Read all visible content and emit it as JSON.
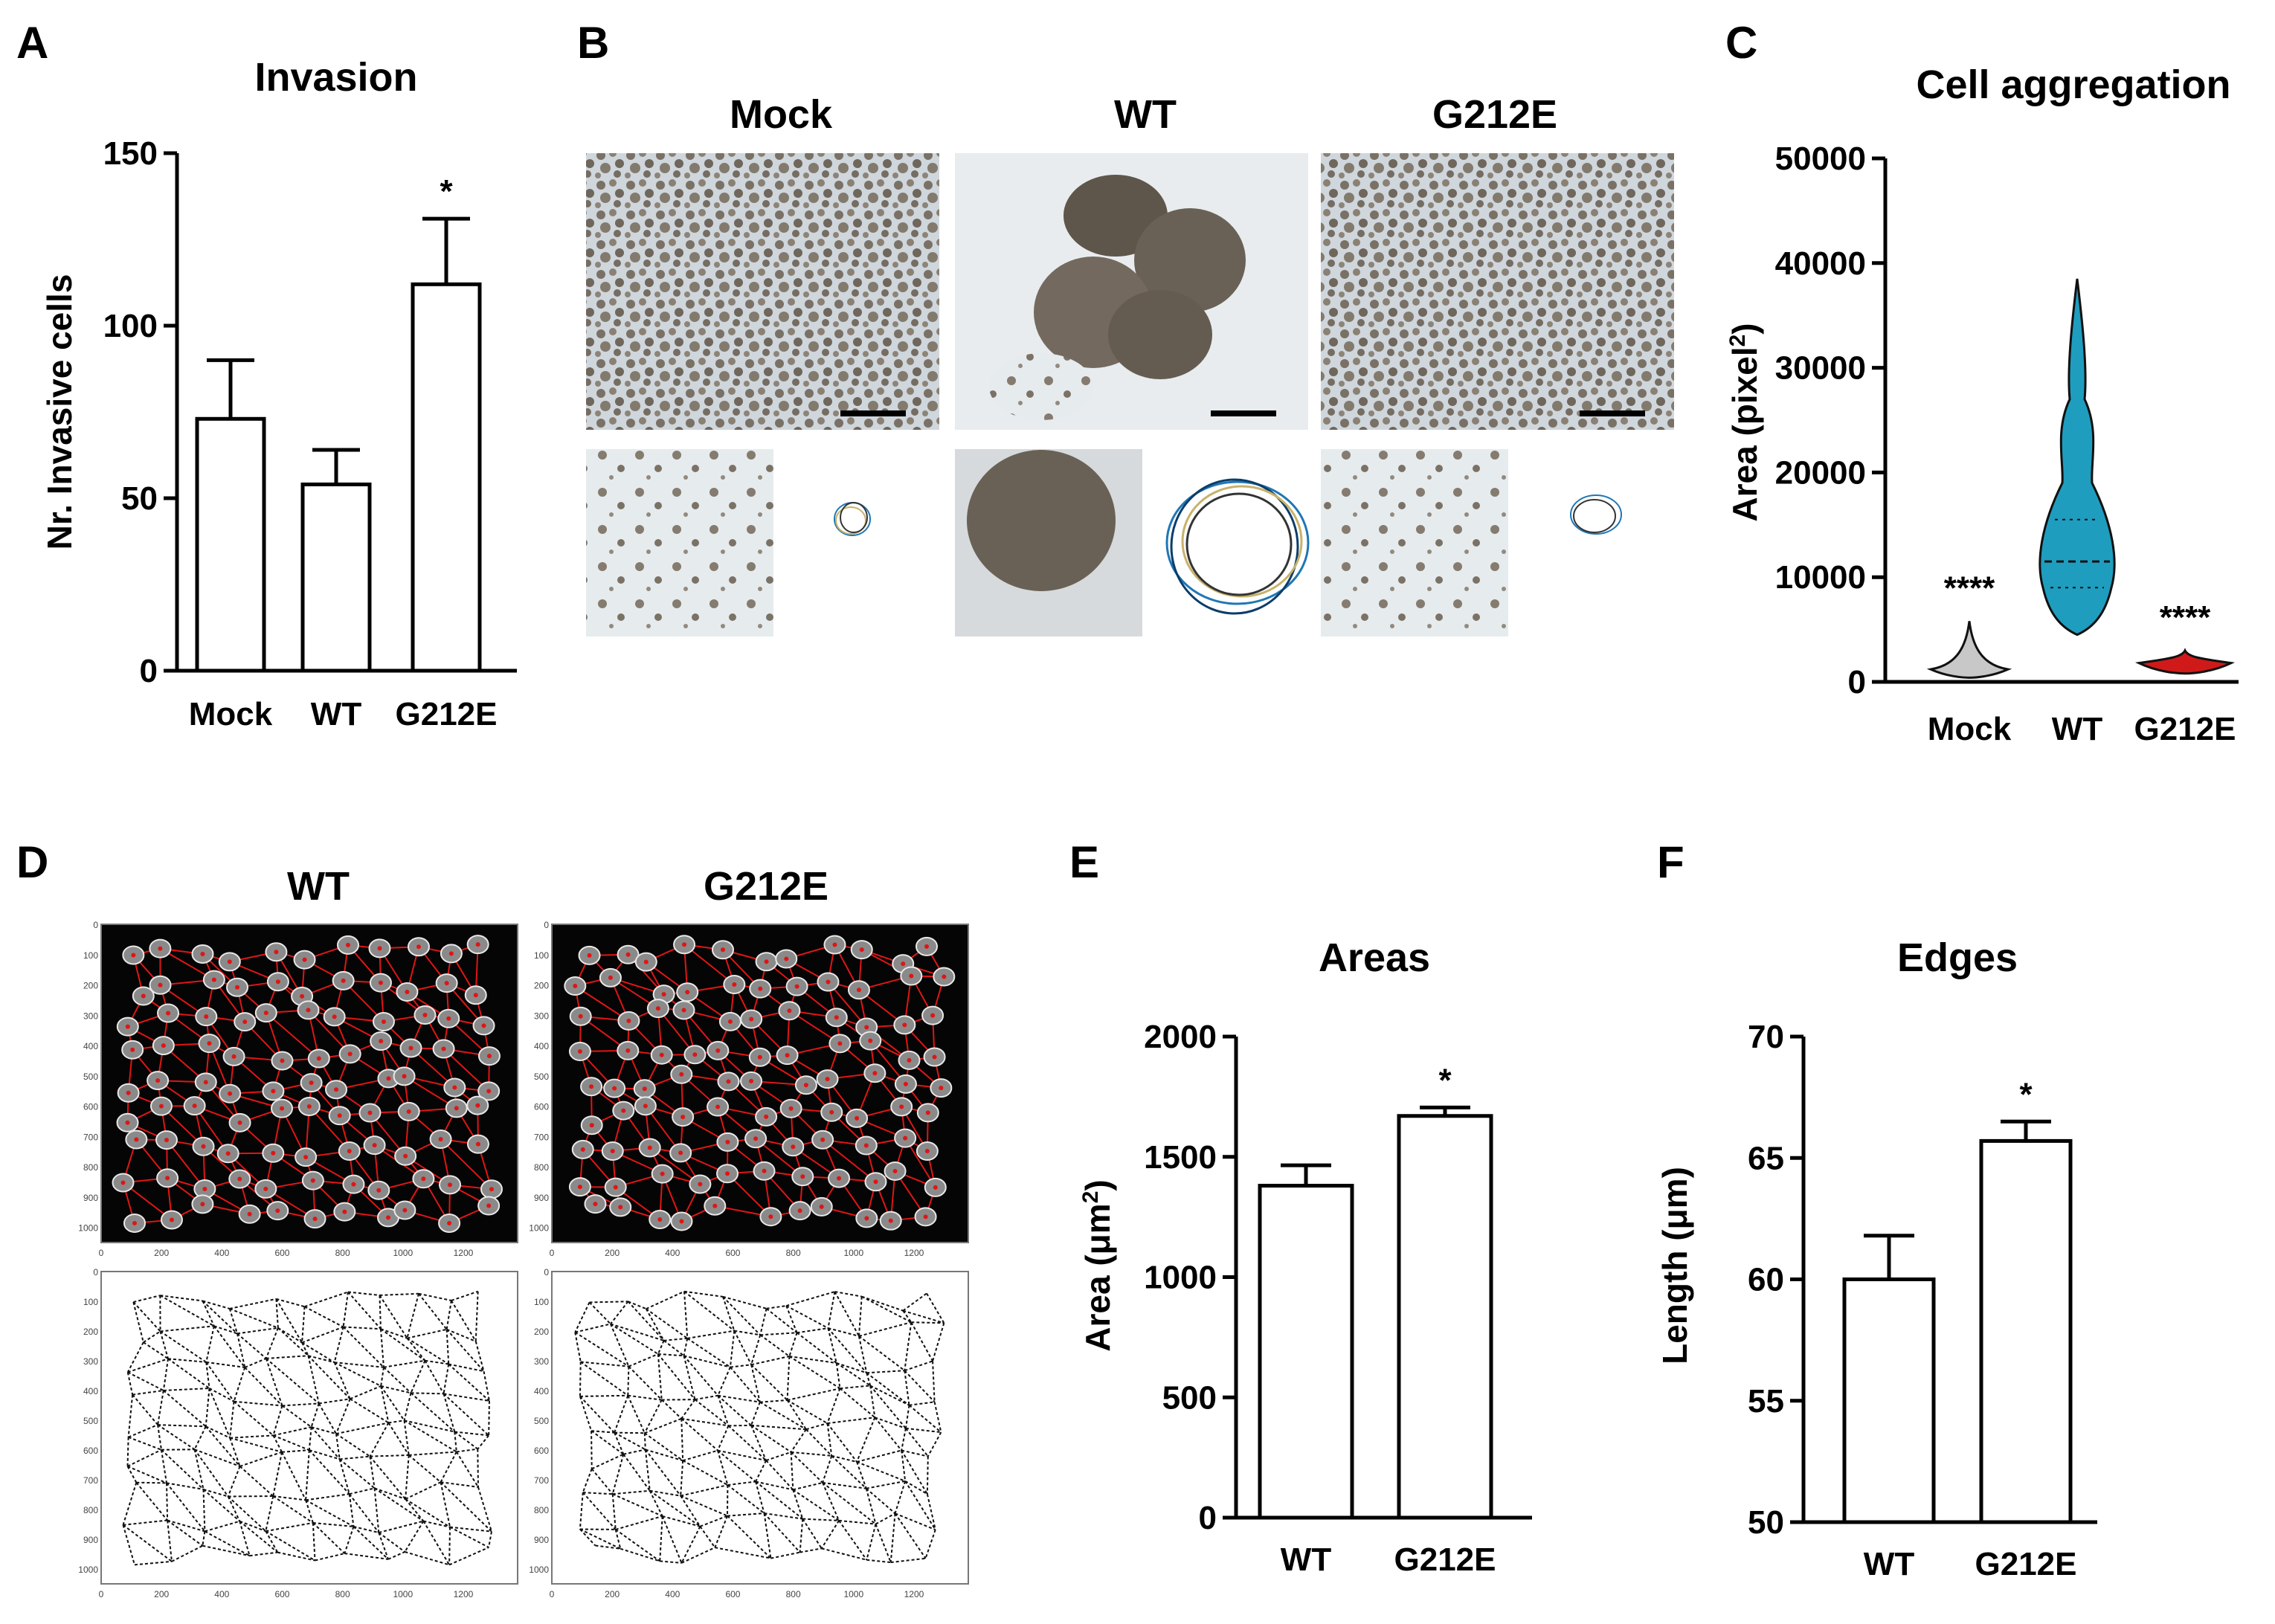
{
  "panels": {
    "A": {
      "letter": "A"
    },
    "B": {
      "letter": "B",
      "labels": [
        "Mock",
        "WT",
        "G212E"
      ]
    },
    "C": {
      "letter": "C"
    },
    "D": {
      "letter": "D",
      "labels": [
        "WT",
        "G212E"
      ],
      "x_ticks": [
        "0",
        "200",
        "400",
        "600",
        "800",
        "1000",
        "1200"
      ],
      "y_ticks": [
        "0",
        "100",
        "200",
        "300",
        "400",
        "500",
        "600",
        "700",
        "800",
        "900",
        "1000"
      ]
    },
    "E": {
      "letter": "E"
    },
    "F": {
      "letter": "F"
    }
  },
  "chart_data": [
    {
      "panel": "A",
      "type": "bar",
      "title": "Invasion",
      "ylabel": "Nr. Invasive cells",
      "xlabel": "",
      "categories": [
        "Mock",
        "WT",
        "G212E"
      ],
      "values": [
        73,
        54,
        112
      ],
      "errors": [
        17,
        10,
        19
      ],
      "significance": [
        "",
        "",
        "*"
      ],
      "ylim": [
        0,
        150
      ],
      "yticks": [
        0,
        50,
        100,
        150
      ]
    },
    {
      "panel": "C",
      "type": "violin",
      "title": "Cell aggregation",
      "ylabel": "Area (pixel²)",
      "xlabel": "",
      "categories": [
        "Mock",
        "WT",
        "G212E"
      ],
      "medians": [
        1200,
        11500,
        1800
      ],
      "ranges": [
        [
          400,
          5800
        ],
        [
          4500,
          38500
        ],
        [
          800,
          3000
        ]
      ],
      "colors": [
        "#c8c8c8",
        "#1f9dbf",
        "#d01a1a"
      ],
      "significance": [
        "****",
        "",
        "****"
      ],
      "ylim": [
        0,
        50000
      ],
      "yticks": [
        0,
        10000,
        20000,
        30000,
        40000,
        50000
      ]
    },
    {
      "panel": "E",
      "type": "bar",
      "title": "Areas",
      "ylabel": "Area (μm²)",
      "xlabel": "",
      "categories": [
        "WT",
        "G212E"
      ],
      "values": [
        1380,
        1670
      ],
      "errors": [
        85,
        35
      ],
      "significance": [
        "",
        "*"
      ],
      "ylim": [
        0,
        2000
      ],
      "yticks": [
        0,
        500,
        1000,
        1500,
        2000
      ]
    },
    {
      "panel": "F",
      "type": "bar",
      "title": "Edges",
      "ylabel": "Length (μm)",
      "xlabel": "",
      "categories": [
        "WT",
        "G212E"
      ],
      "values": [
        60.0,
        65.7
      ],
      "errors": [
        1.8,
        0.8
      ],
      "significance": [
        "",
        "*"
      ],
      "ylim": [
        50,
        70
      ],
      "yticks": [
        50,
        55,
        60,
        65,
        70
      ]
    }
  ]
}
